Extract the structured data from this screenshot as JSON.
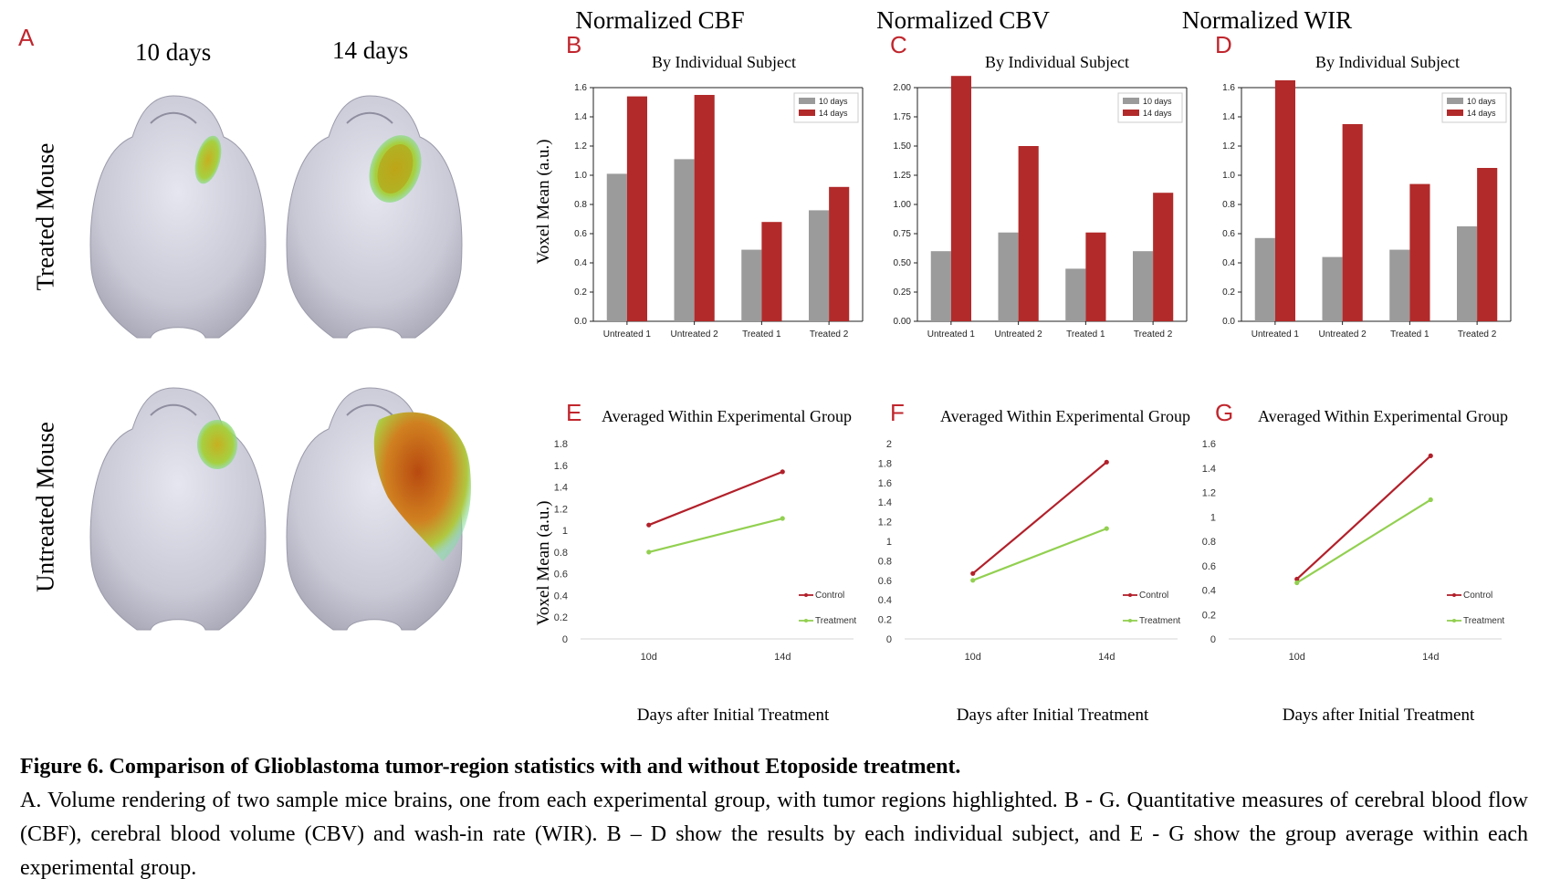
{
  "panel_a": {
    "letter": "A",
    "col_labels": [
      "10 days",
      "14 days"
    ],
    "row_labels": [
      "Treated Mouse",
      "Untreated Mouse"
    ]
  },
  "columns": [
    {
      "title": "Normalized CBF"
    },
    {
      "title": "Normalized CBV"
    },
    {
      "title": "Normalized WIR"
    }
  ],
  "bar_subtitle": "By Individual Subject",
  "line_subtitle": "Averaged Within Experimental Group",
  "ylabel": "Voxel Mean (a.u.)",
  "xlabel": "Days after Initial Treatment",
  "colors": {
    "gray": "#9b9b9b",
    "red": "#b22a2a",
    "control": "#b2202a",
    "treatment": "#92d050",
    "letter": "#c0262d"
  },
  "chart_data": [
    {
      "panel": "B",
      "type": "bar",
      "categories": [
        "Untreated 1",
        "Untreated 2",
        "Treated 1",
        "Treated 2"
      ],
      "series": [
        {
          "name": "10 days",
          "values": [
            1.01,
            1.11,
            0.49,
            0.76
          ]
        },
        {
          "name": "14 days",
          "values": [
            1.54,
            1.55,
            0.68,
            0.92
          ]
        }
      ],
      "yticks": [
        "0.0",
        "0.2",
        "0.4",
        "0.6",
        "0.8",
        "1.0",
        "1.2",
        "1.4",
        "1.6"
      ],
      "ylim": [
        0,
        1.6
      ]
    },
    {
      "panel": "C",
      "type": "bar",
      "categories": [
        "Untreated 1",
        "Untreated 2",
        "Treated 1",
        "Treated 2"
      ],
      "series": [
        {
          "name": "10 days",
          "values": [
            0.6,
            0.76,
            0.45,
            0.6
          ]
        },
        {
          "name": "14 days",
          "values": [
            2.1,
            1.5,
            0.76,
            1.1
          ]
        }
      ],
      "yticks": [
        "0.00",
        "0.25",
        "0.50",
        "0.75",
        "1.00",
        "1.25",
        "1.50",
        "1.75",
        "2.00"
      ],
      "ylim": [
        0,
        2.0
      ]
    },
    {
      "panel": "D",
      "type": "bar",
      "categories": [
        "Untreated 1",
        "Untreated 2",
        "Treated 1",
        "Treated 2"
      ],
      "series": [
        {
          "name": "10 days",
          "values": [
            0.57,
            0.44,
            0.49,
            0.65
          ]
        },
        {
          "name": "14 days",
          "values": [
            1.65,
            1.35,
            0.94,
            1.05
          ]
        }
      ],
      "yticks": [
        "0.0",
        "0.2",
        "0.4",
        "0.6",
        "0.8",
        "1.0",
        "1.2",
        "1.4",
        "1.6"
      ],
      "ylim": [
        0,
        1.6
      ]
    },
    {
      "panel": "E",
      "type": "line",
      "x": [
        "10d",
        "14d"
      ],
      "series": [
        {
          "name": "Control",
          "values": [
            1.05,
            1.54
          ]
        },
        {
          "name": "Treatment",
          "values": [
            0.8,
            1.11
          ]
        }
      ],
      "yticks": [
        "0",
        "0.2",
        "0.4",
        "0.6",
        "0.8",
        "1",
        "1.2",
        "1.4",
        "1.6",
        "1.8"
      ],
      "ylim": [
        0,
        1.8
      ]
    },
    {
      "panel": "F",
      "type": "line",
      "x": [
        "10d",
        "14d"
      ],
      "series": [
        {
          "name": "Control",
          "values": [
            0.67,
            1.81
          ]
        },
        {
          "name": "Treatment",
          "values": [
            0.6,
            1.13
          ]
        }
      ],
      "yticks": [
        "0",
        "0.2",
        "0.4",
        "0.6",
        "0.8",
        "1",
        "1.2",
        "1.4",
        "1.6",
        "1.8",
        "2"
      ],
      "ylim": [
        0,
        2.0
      ]
    },
    {
      "panel": "G",
      "type": "line",
      "x": [
        "10d",
        "14d"
      ],
      "series": [
        {
          "name": "Control",
          "values": [
            0.49,
            1.5
          ]
        },
        {
          "name": "Treatment",
          "values": [
            0.46,
            1.14
          ]
        }
      ],
      "yticks": [
        "0",
        "0.2",
        "0.4",
        "0.6",
        "0.8",
        "1",
        "1.2",
        "1.4",
        "1.6"
      ],
      "ylim": [
        0,
        1.6
      ]
    }
  ],
  "caption": {
    "title": "Figure 6. Comparison of Glioblastoma tumor-region statistics with and without Etoposide treatment.",
    "body": "A. Volume rendering of two sample mice brains, one from each experimental group, with tumor regions highlighted. B - G. Quantitative measures of cerebral blood flow (CBF), cerebral blood volume (CBV) and wash-in rate (WIR). B – D show the results by each individual subject, and E - G show the group average within each experimental group."
  }
}
